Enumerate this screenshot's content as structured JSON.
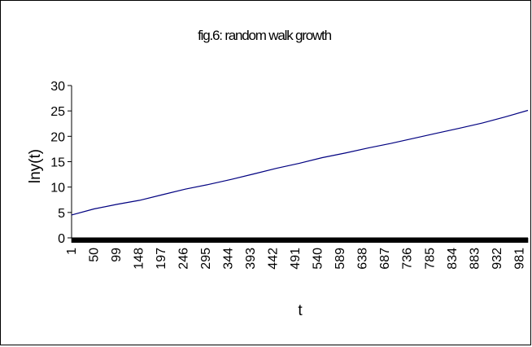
{
  "chart_data": {
    "type": "line",
    "title": "fig.6: random walk growth",
    "xlabel": "t",
    "ylabel": "lny(t)",
    "x_range": [
      1,
      1000
    ],
    "x_tick_labels": [
      "1",
      "50",
      "99",
      "148",
      "197",
      "246",
      "295",
      "344",
      "393",
      "442",
      "491",
      "540",
      "589",
      "638",
      "687",
      "736",
      "785",
      "834",
      "883",
      "932",
      "981"
    ],
    "ylim": [
      0,
      30
    ],
    "y_ticks": [
      0,
      5,
      10,
      15,
      20,
      25,
      30
    ],
    "grid": false,
    "legend": "none",
    "line_color": "#000080",
    "series": [
      {
        "x": [
          1,
          50,
          100,
          150,
          200,
          250,
          300,
          350,
          400,
          450,
          500,
          550,
          600,
          650,
          700,
          750,
          800,
          850,
          900,
          950,
          1000
        ],
        "values": [
          4.5,
          5.7,
          6.6,
          7.4,
          8.5,
          9.6,
          10.5,
          11.5,
          12.6,
          13.7,
          14.7,
          15.8,
          16.7,
          17.7,
          18.6,
          19.6,
          20.6,
          21.6,
          22.6,
          23.8,
          25.1
        ]
      }
    ]
  }
}
